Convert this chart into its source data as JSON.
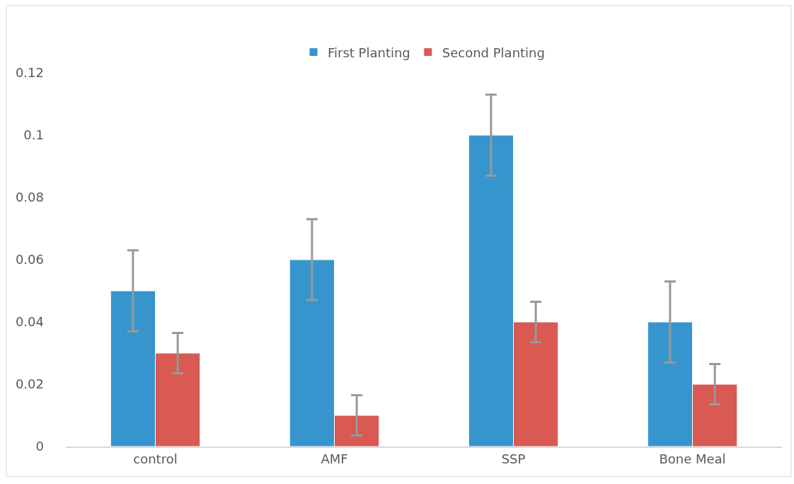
{
  "chart_data": {
    "type": "bar",
    "categories": [
      "control",
      "AMF",
      "SSP",
      "Bone Meal"
    ],
    "series": [
      {
        "name": "First Planting",
        "color": "#3795cd",
        "values": [
          0.05,
          0.06,
          0.1,
          0.04
        ],
        "errors": [
          0.013,
          0.013,
          0.013,
          0.013
        ]
      },
      {
        "name": "Second Planting",
        "color": "#d95953",
        "values": [
          0.03,
          0.01,
          0.04,
          0.02
        ],
        "errors": [
          0.0065,
          0.0065,
          0.0065,
          0.0065
        ]
      }
    ],
    "ylim": [
      0,
      0.12
    ],
    "yticks": [
      0,
      0.02,
      0.04,
      0.06,
      0.08,
      0.1,
      0.12
    ],
    "grid": false,
    "legend": "top"
  }
}
